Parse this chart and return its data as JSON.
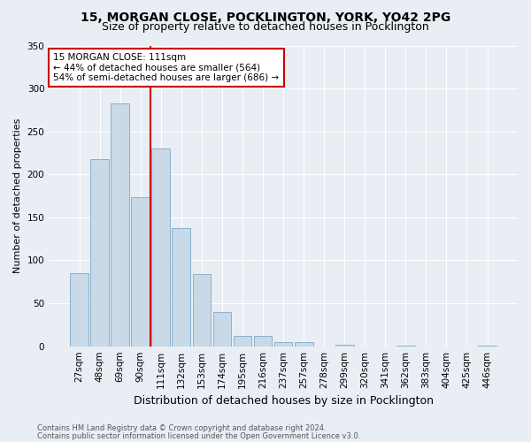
{
  "title_line1": "15, MORGAN CLOSE, POCKLINGTON, YORK, YO42 2PG",
  "title_line2": "Size of property relative to detached houses in Pocklington",
  "xlabel": "Distribution of detached houses by size in Pocklington",
  "ylabel": "Number of detached properties",
  "bar_categories": [
    "27sqm",
    "48sqm",
    "69sqm",
    "90sqm",
    "111sqm",
    "132sqm",
    "153sqm",
    "174sqm",
    "195sqm",
    "216sqm",
    "237sqm",
    "257sqm",
    "278sqm",
    "299sqm",
    "320sqm",
    "341sqm",
    "362sqm",
    "383sqm",
    "404sqm",
    "425sqm",
    "446sqm"
  ],
  "bar_values": [
    85,
    218,
    283,
    174,
    230,
    138,
    84,
    40,
    12,
    12,
    5,
    5,
    0,
    2,
    0,
    0,
    1,
    0,
    0,
    0,
    1
  ],
  "bar_color": "#c9d9e8",
  "bar_edge_color": "#7aaac8",
  "vline_x": 3.5,
  "vline_color": "#cc0000",
  "annotation_text": "15 MORGAN CLOSE: 111sqm\n← 44% of detached houses are smaller (564)\n54% of semi-detached houses are larger (686) →",
  "annotation_box_facecolor": "#ffffff",
  "annotation_box_edgecolor": "#cc0000",
  "ylim": [
    0,
    350
  ],
  "yticks": [
    0,
    50,
    100,
    150,
    200,
    250,
    300,
    350
  ],
  "background_color": "#e8eef4",
  "plot_bg_color": "#e8eef4",
  "footer_line1": "Contains HM Land Registry data © Crown copyright and database right 2024.",
  "footer_line2": "Contains public sector information licensed under the Open Government Licence v3.0.",
  "title_fontsize": 10,
  "subtitle_fontsize": 9,
  "ylabel_fontsize": 8,
  "xlabel_fontsize": 9,
  "tick_fontsize": 7.5,
  "annotation_fontsize": 7.5,
  "footer_fontsize": 6
}
